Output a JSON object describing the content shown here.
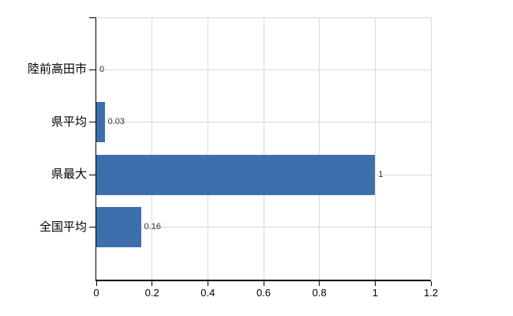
{
  "chart_data": {
    "type": "bar",
    "orientation": "horizontal",
    "title": "",
    "categories": [
      "陸前高田市",
      "県平均",
      "県最大",
      "全国平均"
    ],
    "values": [
      0,
      0.03,
      1,
      0.16
    ],
    "value_labels": [
      "0",
      "0.03",
      "1",
      "0.16"
    ],
    "xlim": [
      0,
      1.2
    ],
    "x_ticks": [
      0,
      0.2,
      0.4,
      0.6,
      0.8,
      1,
      1.2
    ],
    "x_tick_labels": [
      "0",
      "0.2",
      "0.4",
      "0.6",
      "0.8",
      "1",
      "1.2"
    ],
    "grid": true,
    "legend": false,
    "colors": {
      "bar": "#3e6fad",
      "gridline": "#d9d9d9",
      "axis": "#000000",
      "tick_label": "#000000",
      "category_label": "#000000",
      "value_label": "#333333",
      "background": "#ffffff"
    }
  }
}
